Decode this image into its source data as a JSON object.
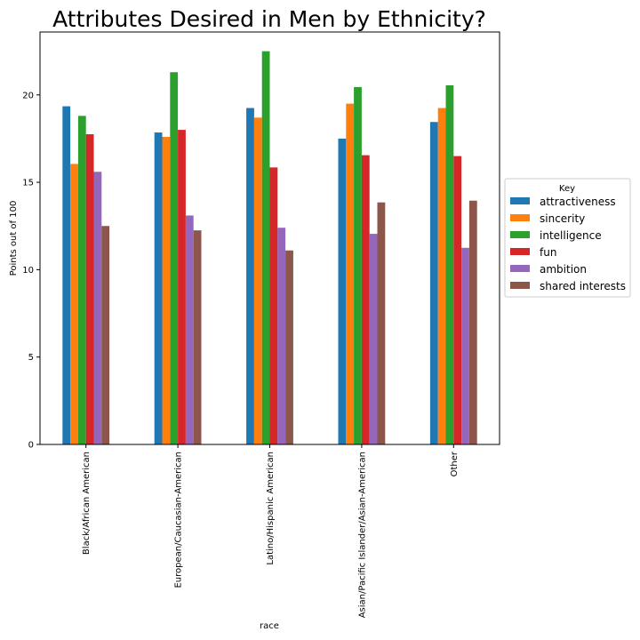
{
  "chart_data": {
    "type": "bar",
    "title": "Attributes Desired in Men by Ethnicity?",
    "xlabel": "race",
    "ylabel": "Points out of 100",
    "ylim": [
      0,
      23.6
    ],
    "yticks": [
      0,
      5,
      10,
      15,
      20
    ],
    "grid": false,
    "legend": {
      "title": "Key",
      "placement": "right"
    },
    "categories": [
      "Black/African American",
      "European/Caucasian-American",
      "Latino/Hispanic American",
      "Asian/Pacific Islander/Asian-American",
      "Other"
    ],
    "series": [
      {
        "name": "attractiveness",
        "color": "#1f77b4",
        "values": [
          19.35,
          17.85,
          19.25,
          17.5,
          18.45
        ]
      },
      {
        "name": "sincerity",
        "color": "#ff7f0e",
        "values": [
          16.05,
          17.6,
          18.7,
          19.5,
          19.25
        ]
      },
      {
        "name": "intelligence",
        "color": "#2ca02c",
        "values": [
          18.8,
          21.3,
          22.5,
          20.45,
          20.55
        ]
      },
      {
        "name": "fun",
        "color": "#d62728",
        "values": [
          17.75,
          18.0,
          15.85,
          16.55,
          16.5
        ]
      },
      {
        "name": "ambition",
        "color": "#9467bd",
        "values": [
          15.6,
          13.1,
          12.4,
          12.05,
          11.25
        ]
      },
      {
        "name": "shared interests",
        "color": "#8c564b",
        "values": [
          12.5,
          12.25,
          11.1,
          13.85,
          13.95
        ]
      }
    ]
  }
}
